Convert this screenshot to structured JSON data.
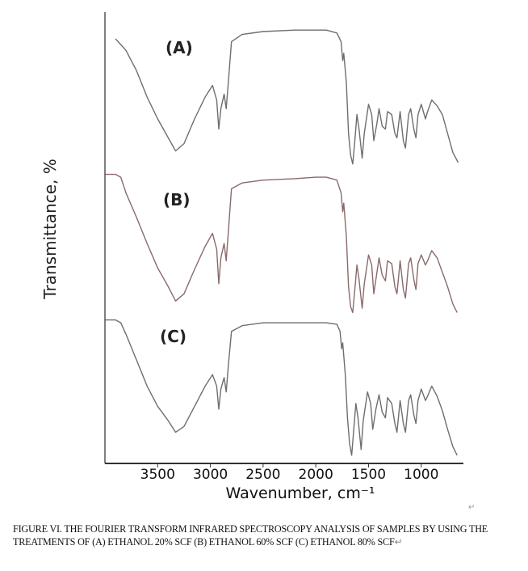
{
  "chart_data": {
    "type": "line",
    "xlabel": "Wavenumber, cm⁻¹",
    "ylabel": "Transmittance, %",
    "xlim": [
      4000,
      600
    ],
    "x_reversed": true,
    "ticks": [
      3500,
      3000,
      2500,
      2000,
      1500,
      1000
    ],
    "tick_labels": [
      "3500",
      "3000",
      "2500",
      "2000",
      "1500",
      "1000"
    ],
    "grid": false,
    "series": [
      {
        "name": "(A)",
        "color": "#6e6e6e",
        "points": [
          [
            3900,
            90
          ],
          [
            3800,
            82
          ],
          [
            3700,
            68
          ],
          [
            3600,
            50
          ],
          [
            3500,
            35
          ],
          [
            3400,
            22
          ],
          [
            3330,
            13
          ],
          [
            3250,
            18
          ],
          [
            3150,
            35
          ],
          [
            3050,
            50
          ],
          [
            2980,
            58
          ],
          [
            2940,
            48
          ],
          [
            2920,
            28
          ],
          [
            2900,
            42
          ],
          [
            2870,
            52
          ],
          [
            2850,
            42
          ],
          [
            2830,
            60
          ],
          [
            2800,
            88
          ],
          [
            2700,
            93
          ],
          [
            2500,
            95
          ],
          [
            2200,
            96
          ],
          [
            2000,
            96
          ],
          [
            1900,
            96
          ],
          [
            1800,
            94
          ],
          [
            1760,
            88
          ],
          [
            1745,
            75
          ],
          [
            1735,
            80
          ],
          [
            1710,
            60
          ],
          [
            1690,
            25
          ],
          [
            1670,
            10
          ],
          [
            1650,
            4
          ],
          [
            1630,
            20
          ],
          [
            1610,
            38
          ],
          [
            1590,
            28
          ],
          [
            1560,
            8
          ],
          [
            1540,
            25
          ],
          [
            1500,
            45
          ],
          [
            1470,
            38
          ],
          [
            1450,
            20
          ],
          [
            1420,
            32
          ],
          [
            1400,
            42
          ],
          [
            1370,
            30
          ],
          [
            1340,
            28
          ],
          [
            1320,
            40
          ],
          [
            1280,
            38
          ],
          [
            1250,
            25
          ],
          [
            1230,
            22
          ],
          [
            1200,
            40
          ],
          [
            1170,
            20
          ],
          [
            1150,
            15
          ],
          [
            1120,
            38
          ],
          [
            1100,
            42
          ],
          [
            1070,
            28
          ],
          [
            1050,
            22
          ],
          [
            1030,
            38
          ],
          [
            1000,
            45
          ],
          [
            960,
            35
          ],
          [
            940,
            40
          ],
          [
            900,
            48
          ],
          [
            850,
            44
          ],
          [
            800,
            38
          ],
          [
            750,
            25
          ],
          [
            700,
            12
          ],
          [
            650,
            5
          ]
        ]
      },
      {
        "name": "(B)",
        "color": "#8a6a6a",
        "points": [
          [
            4000,
            98
          ],
          [
            3900,
            98
          ],
          [
            3850,
            96
          ],
          [
            3800,
            85
          ],
          [
            3700,
            68
          ],
          [
            3600,
            50
          ],
          [
            3500,
            33
          ],
          [
            3400,
            20
          ],
          [
            3330,
            10
          ],
          [
            3250,
            15
          ],
          [
            3150,
            32
          ],
          [
            3050,
            48
          ],
          [
            2980,
            57
          ],
          [
            2940,
            46
          ],
          [
            2920,
            22
          ],
          [
            2900,
            40
          ],
          [
            2870,
            50
          ],
          [
            2850,
            38
          ],
          [
            2830,
            58
          ],
          [
            2800,
            88
          ],
          [
            2700,
            92
          ],
          [
            2500,
            94
          ],
          [
            2200,
            95
          ],
          [
            2000,
            96
          ],
          [
            1900,
            96
          ],
          [
            1800,
            94
          ],
          [
            1760,
            85
          ],
          [
            1745,
            72
          ],
          [
            1735,
            78
          ],
          [
            1710,
            55
          ],
          [
            1690,
            20
          ],
          [
            1670,
            6
          ],
          [
            1650,
            2
          ],
          [
            1630,
            18
          ],
          [
            1610,
            35
          ],
          [
            1590,
            25
          ],
          [
            1560,
            5
          ],
          [
            1540,
            22
          ],
          [
            1500,
            42
          ],
          [
            1470,
            35
          ],
          [
            1450,
            15
          ],
          [
            1420,
            30
          ],
          [
            1400,
            40
          ],
          [
            1370,
            28
          ],
          [
            1340,
            24
          ],
          [
            1320,
            38
          ],
          [
            1280,
            36
          ],
          [
            1250,
            20
          ],
          [
            1230,
            15
          ],
          [
            1200,
            38
          ],
          [
            1170,
            18
          ],
          [
            1150,
            12
          ],
          [
            1120,
            36
          ],
          [
            1100,
            40
          ],
          [
            1070,
            25
          ],
          [
            1050,
            18
          ],
          [
            1030,
            36
          ],
          [
            1000,
            42
          ],
          [
            960,
            35
          ],
          [
            940,
            38
          ],
          [
            900,
            45
          ],
          [
            850,
            40
          ],
          [
            800,
            30
          ],
          [
            750,
            20
          ],
          [
            700,
            8
          ],
          [
            660,
            2
          ]
        ]
      },
      {
        "name": "(C)",
        "color": "#6e6e6e",
        "points": [
          [
            4000,
            98
          ],
          [
            3900,
            98
          ],
          [
            3850,
            96
          ],
          [
            3800,
            88
          ],
          [
            3700,
            70
          ],
          [
            3600,
            52
          ],
          [
            3500,
            38
          ],
          [
            3400,
            28
          ],
          [
            3330,
            20
          ],
          [
            3250,
            24
          ],
          [
            3150,
            38
          ],
          [
            3050,
            52
          ],
          [
            2980,
            60
          ],
          [
            2940,
            52
          ],
          [
            2920,
            36
          ],
          [
            2900,
            50
          ],
          [
            2870,
            58
          ],
          [
            2850,
            48
          ],
          [
            2830,
            66
          ],
          [
            2800,
            90
          ],
          [
            2700,
            94
          ],
          [
            2500,
            96
          ],
          [
            2200,
            96
          ],
          [
            2000,
            96
          ],
          [
            1900,
            96
          ],
          [
            1800,
            95
          ],
          [
            1770,
            90
          ],
          [
            1755,
            78
          ],
          [
            1745,
            82
          ],
          [
            1720,
            60
          ],
          [
            1700,
            30
          ],
          [
            1680,
            12
          ],
          [
            1660,
            4
          ],
          [
            1640,
            22
          ],
          [
            1620,
            40
          ],
          [
            1600,
            30
          ],
          [
            1570,
            8
          ],
          [
            1550,
            28
          ],
          [
            1510,
            48
          ],
          [
            1480,
            40
          ],
          [
            1460,
            22
          ],
          [
            1430,
            36
          ],
          [
            1400,
            46
          ],
          [
            1370,
            34
          ],
          [
            1340,
            30
          ],
          [
            1320,
            44
          ],
          [
            1280,
            40
          ],
          [
            1250,
            26
          ],
          [
            1230,
            20
          ],
          [
            1200,
            42
          ],
          [
            1170,
            26
          ],
          [
            1150,
            20
          ],
          [
            1120,
            42
          ],
          [
            1100,
            46
          ],
          [
            1070,
            32
          ],
          [
            1050,
            26
          ],
          [
            1030,
            42
          ],
          [
            1000,
            50
          ],
          [
            960,
            42
          ],
          [
            940,
            45
          ],
          [
            900,
            52
          ],
          [
            850,
            45
          ],
          [
            800,
            35
          ],
          [
            750,
            22
          ],
          [
            700,
            10
          ],
          [
            660,
            4
          ]
        ]
      }
    ]
  },
  "caption": "FIGURE VI. THE FOURIER TRANSFORM INFRARED SPECTROSCOPY ANALYSIS OF SAMPLES BY USING THE TREATMENTS OF (A) ETHANOL 20% SCF (B) ETHANOL 60% SCF (C) ETHANOL 80% SCF",
  "return_mark": "↵"
}
